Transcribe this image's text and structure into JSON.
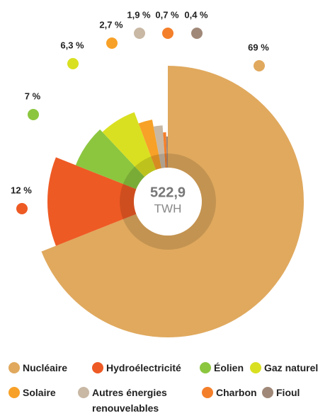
{
  "chart_data": {
    "type": "pie",
    "categories": [
      "Nucléaire",
      "Hydroélectricité",
      "Éolien",
      "Gaz naturel",
      "Solaire",
      "Autres énergies renouvelables",
      "Charbon",
      "Fioul"
    ],
    "values": [
      69,
      12,
      7,
      6.3,
      2.7,
      1.9,
      0.7,
      0.4
    ],
    "value_labels": [
      "69 %",
      "12 %",
      "7 %",
      "6,3 %",
      "2,7 %",
      "1,9 %",
      "0,7 %",
      "0,4 %"
    ],
    "colors": [
      "#e0a95e",
      "#ee5a24",
      "#8cc63f",
      "#d9e021",
      "#f7a128",
      "#c8b8a4",
      "#f47f2a",
      "#a08878"
    ],
    "center_label": "522,9",
    "center_unit": "TWH",
    "legend": true
  }
}
